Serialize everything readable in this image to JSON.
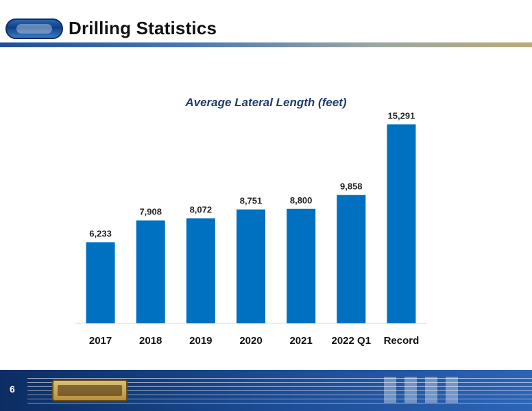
{
  "header": {
    "title": "Drilling Statistics"
  },
  "footer": {
    "page_number": "6"
  },
  "chart_data": {
    "type": "bar",
    "title": "Average Lateral Length  (feet)",
    "categories": [
      "2017",
      "2018",
      "2019",
      "2020",
      "2021",
      "2022 Q1",
      "Record"
    ],
    "values": [
      6233,
      7908,
      8072,
      8751,
      8800,
      9858,
      15291
    ],
    "value_labels": [
      "6,233",
      "7,908",
      "8,072",
      "8,751",
      "8,800",
      "9,858",
      "15,291"
    ],
    "ylim": [
      0,
      16000
    ],
    "grid": false,
    "bar_color": "#0070C0"
  }
}
